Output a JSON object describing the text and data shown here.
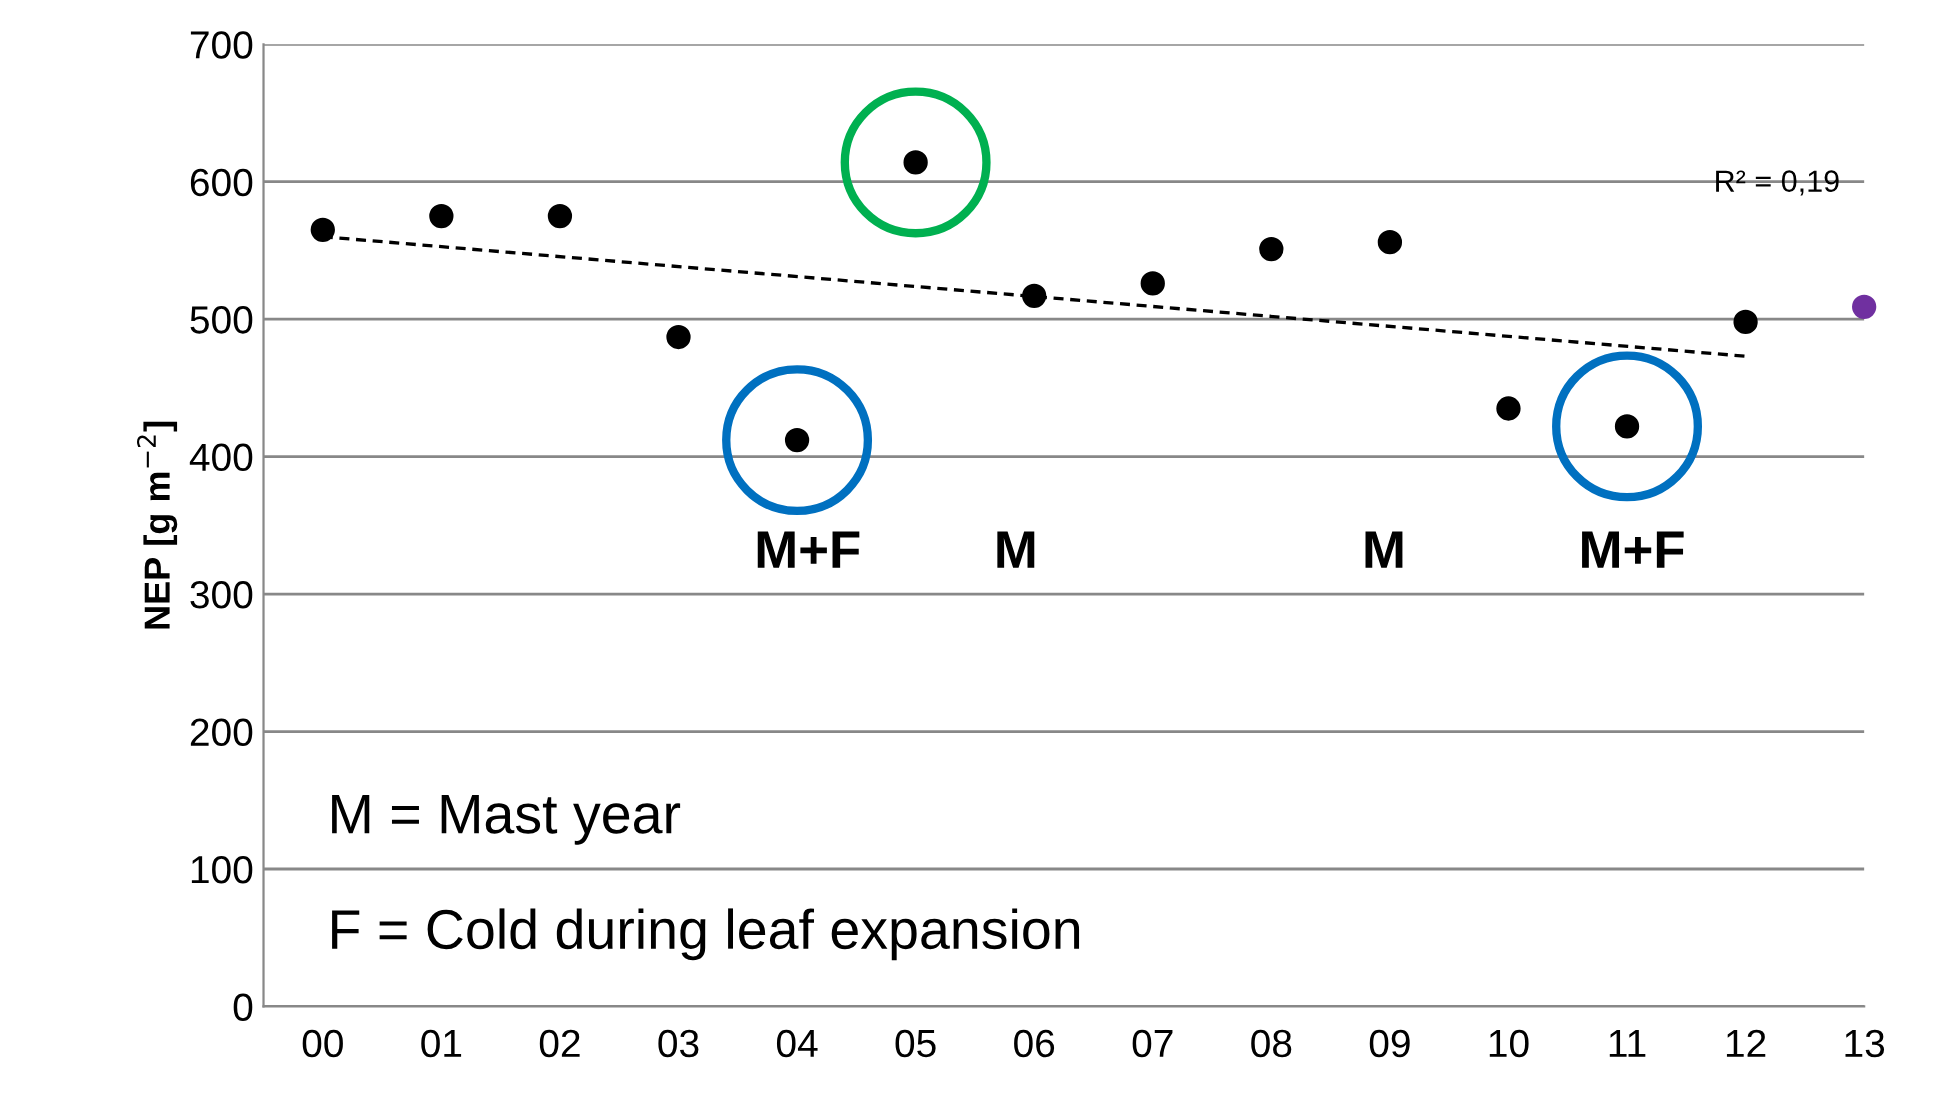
{
  "chart_data": {
    "type": "scatter",
    "ylabel": "NEP [g m$^{−2}$]",
    "categories": [
      "00",
      "01",
      "02",
      "03",
      "04",
      "05",
      "06",
      "07",
      "08",
      "09",
      "10",
      "11",
      "12",
      "13"
    ],
    "series": [
      {
        "color": "#000000",
        "marker": "circle",
        "values": [
          565,
          575,
          575,
          487,
          412,
          614,
          517,
          526,
          551,
          556,
          435,
          422,
          498,
          null
        ]
      },
      {
        "type": "scatter",
        "color": "#7030a0",
        "marker": "circle",
        "values": [
          null,
          null,
          null,
          null,
          null,
          null,
          null,
          null,
          null,
          null,
          null,
          null,
          null,
          509
        ]
      },
      {
        "type": "line",
        "color": "#000000",
        "line_style": "dashed",
        "x": [
          "00",
          "12"
        ],
        "values": [
          560,
          473
        ]
      },
      {
        "type": "bubble",
        "colors": [
          "#0070c0",
          "#00b050",
          "#0070c0"
        ],
        "x": [
          "04",
          "05",
          "11"
        ],
        "values": [
          412,
          614,
          422
        ],
        "sizes": [
          1,
          1,
          1
        ]
      }
    ],
    "ylim": [
      0,
      700
    ],
    "yticks": [
      0,
      100,
      200,
      300,
      400,
      500,
      600,
      700
    ],
    "grid": "y",
    "legend": false,
    "annotations": [
      "R² = 0,19",
      "M+F",
      "M",
      "M",
      "M+F",
      "M = Mast year",
      "F = Cold during leaf expansion"
    ]
  }
}
